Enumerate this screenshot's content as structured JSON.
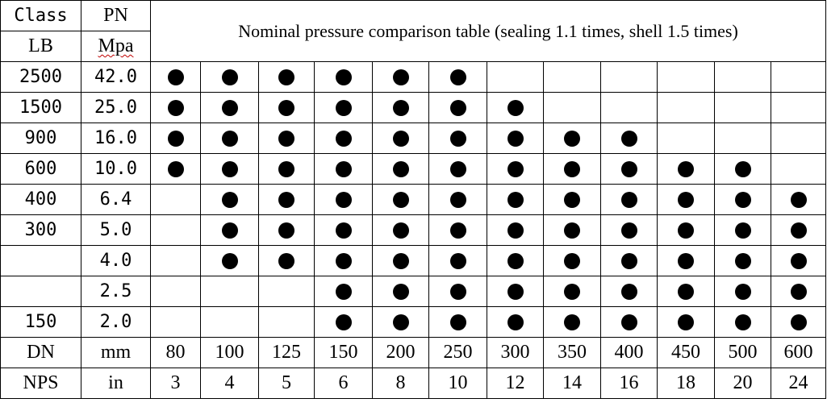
{
  "header": {
    "class_label": "Class",
    "pn_label": "PN",
    "lb_label": "LB",
    "mpa_label": "Mpa",
    "title": "Nominal pressure comparison table (sealing 1.1 times, shell 1.5 times)"
  },
  "rows": [
    {
      "class": "2500",
      "pn": "42.0",
      "marks": [
        1,
        1,
        1,
        1,
        1,
        1,
        0,
        0,
        0,
        0,
        0,
        0
      ]
    },
    {
      "class": "1500",
      "pn": "25.0",
      "marks": [
        1,
        1,
        1,
        1,
        1,
        1,
        1,
        0,
        0,
        0,
        0,
        0
      ]
    },
    {
      "class": "900",
      "pn": "16.0",
      "marks": [
        1,
        1,
        1,
        1,
        1,
        1,
        1,
        1,
        1,
        0,
        0,
        0
      ]
    },
    {
      "class": "600",
      "pn": "10.0",
      "marks": [
        1,
        1,
        1,
        1,
        1,
        1,
        1,
        1,
        1,
        1,
        1,
        0
      ]
    },
    {
      "class": "400",
      "pn": "6.4",
      "marks": [
        0,
        1,
        1,
        1,
        1,
        1,
        1,
        1,
        1,
        1,
        1,
        1
      ]
    },
    {
      "class": "300",
      "pn": "5.0",
      "marks": [
        0,
        1,
        1,
        1,
        1,
        1,
        1,
        1,
        1,
        1,
        1,
        1
      ]
    },
    {
      "class": "",
      "pn": "4.0",
      "marks": [
        0,
        1,
        1,
        1,
        1,
        1,
        1,
        1,
        1,
        1,
        1,
        1
      ]
    },
    {
      "class": "",
      "pn": "2.5",
      "marks": [
        0,
        0,
        0,
        1,
        1,
        1,
        1,
        1,
        1,
        1,
        1,
        1
      ]
    },
    {
      "class": "150",
      "pn": "2.0",
      "marks": [
        0,
        0,
        0,
        1,
        1,
        1,
        1,
        1,
        1,
        1,
        1,
        1
      ]
    }
  ],
  "dn_row": {
    "label1": "DN",
    "label2": "mm",
    "values": [
      "80",
      "100",
      "125",
      "150",
      "200",
      "250",
      "300",
      "350",
      "400",
      "450",
      "500",
      "600"
    ]
  },
  "nps_row": {
    "label1": "NPS",
    "label2": "in",
    "values": [
      "3",
      "4",
      "5",
      "6",
      "8",
      "10",
      "12",
      "14",
      "16",
      "18",
      "20",
      "24"
    ]
  },
  "mark_icon": "filled-circle"
}
